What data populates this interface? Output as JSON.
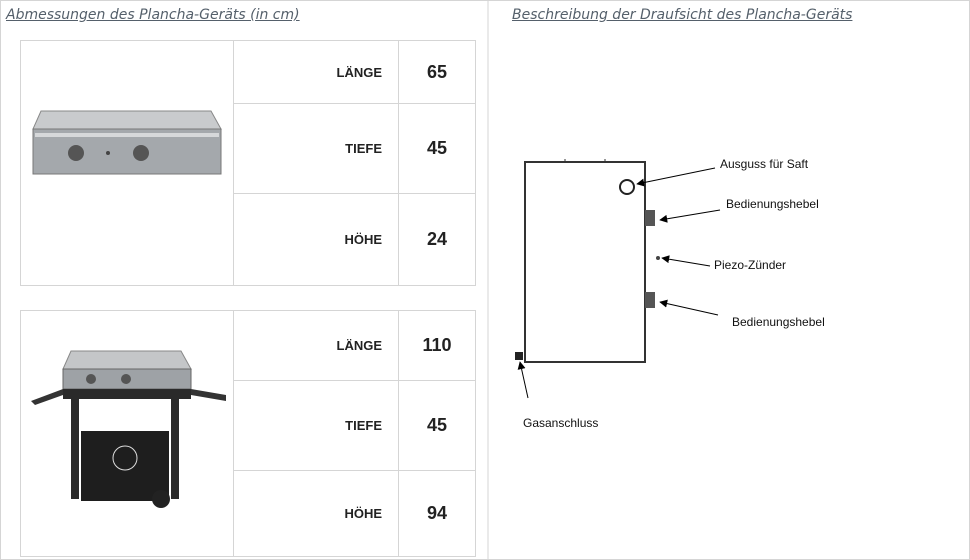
{
  "left": {
    "title": "Abmessungen des Plancha-Geräts (in cm)",
    "tables": [
      {
        "rows": [
          {
            "label": "LÄNGE",
            "value": 65
          },
          {
            "label": "TIEFE",
            "value": 45
          },
          {
            "label": "HÖHE",
            "value": 24
          }
        ]
      },
      {
        "rows": [
          {
            "label": "LÄNGE",
            "value": 110
          },
          {
            "label": "TIEFE",
            "value": 45
          },
          {
            "label": "HÖHE",
            "value": 94
          }
        ]
      }
    ]
  },
  "right": {
    "title": "Beschreibung der Draufsicht des Plancha-Geräts",
    "labels": [
      "Ausguss für Saft",
      "Bedienungshebel",
      "Piezo-Zünder",
      "Bedienungshebel",
      "Gasanschluss"
    ]
  }
}
